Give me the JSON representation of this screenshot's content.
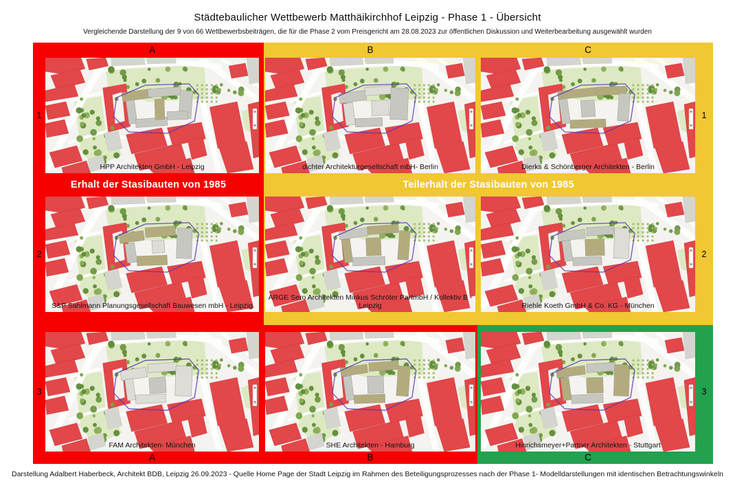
{
  "page": {
    "title": "Städtebaulicher Wettbewerb Matthäikirchhof Leipzig - Phase 1 - Übersicht",
    "subtitle": "Vergleichende Darstellung der 9 von 66 Wettbewerbsbeiträgen, die für die Phase 2 vom Preisgericht am 28.08.2023 zur öffentlichen Diskussion und Weiterbearbeitung ausgewählt wurden",
    "footer": "Darstellung Adalbert Haberbeck, Architekt BDB, Leipzig 26.09.2023 - Quelle Home Page der Stadt Leipzig im Rahmen des Beteiligungsprozesses nach der Phase 1- Modelldarstellungen mit identischen Betrachtungswinkeln"
  },
  "colors": {
    "red": "#f70000",
    "yellow": "#f1c733",
    "green": "#23a14e",
    "banner_text": "#ffffff"
  },
  "groups": {
    "erhalt_label": "Erhalt der Stasibauten von 1985",
    "teilerhalt_label": "Teilerhalt der Stasibauten von 1985"
  },
  "columns": {
    "top": [
      "A",
      "B",
      "C"
    ],
    "bottom": [
      "A",
      "B",
      "C"
    ]
  },
  "rows": {
    "left": [
      "1",
      "2",
      "3"
    ],
    "right": [
      "1",
      "2",
      "3"
    ]
  },
  "entries": [
    {
      "cell": "A1",
      "architect": "HPP Architekten GmbH - Leipzig"
    },
    {
      "cell": "B1",
      "architect": "dichter Architekturgesellschaft mbH- Berlin"
    },
    {
      "cell": "C1",
      "architect": "Dierks & Schönberger Architekten - Berlin"
    },
    {
      "cell": "A2",
      "architect": "S&P Sahlmann Planungsgesellschaft Bauwesen mbH - Leipzig"
    },
    {
      "cell": "B2",
      "architect": "ARGE Sero Architekten Minkus Schröter PartmbH / Kollektiv B - Leipzig"
    },
    {
      "cell": "C2",
      "architect": "Riehle Koeth GmbH & Co. KG - München"
    },
    {
      "cell": "A3",
      "architect": "FAM Architekten- München"
    },
    {
      "cell": "B3",
      "architect": "SHE Architekten - Hamburg"
    },
    {
      "cell": "C3",
      "architect": "Hinrichsmeyer+Partner Architekten - Stuttgart"
    }
  ]
}
